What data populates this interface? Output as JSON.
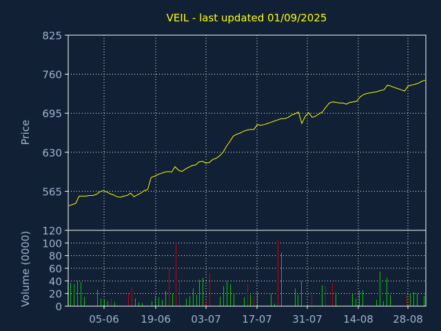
{
  "colors": {
    "background": "#112034",
    "frame": "#ffffff",
    "grid": "#ffffff",
    "title": "#ffff00",
    "axis_text": "#9db3d1",
    "price_line": "#ffff00",
    "volume_up": "#00cc00",
    "volume_down": "#cc0000"
  },
  "chart_data": [
    {
      "type": "line",
      "title": "VEIL - last updated 01/09/2025",
      "ylabel": "Price",
      "ylim": [
        500,
        825
      ],
      "yticks": [
        565,
        630,
        695,
        760,
        825
      ],
      "xtick_labels": [
        "05-06",
        "19-06",
        "03-07",
        "17-07",
        "31-07",
        "14-08",
        "28-08"
      ],
      "grid": true,
      "series": [
        {
          "values": [
            541,
            543,
            545,
            557,
            557,
            557,
            558,
            558,
            560,
            564,
            566,
            564,
            561,
            559,
            556,
            555,
            557,
            558,
            562,
            556,
            559,
            562,
            566,
            568,
            588,
            590,
            593,
            595,
            597,
            598,
            597,
            606,
            600,
            598,
            602,
            605,
            608,
            609,
            614,
            615,
            612,
            613,
            618,
            620,
            624,
            630,
            640,
            648,
            657,
            660,
            662,
            665,
            667,
            668,
            668,
            676,
            675,
            676,
            678,
            680,
            682,
            684,
            686,
            686,
            688,
            692,
            694,
            697,
            678,
            690,
            696,
            688,
            690,
            694,
            697,
            705,
            712,
            714,
            713,
            712,
            712,
            710,
            713,
            714,
            715,
            722,
            726,
            728,
            729,
            730,
            731,
            733,
            734,
            742,
            740,
            738,
            736,
            734,
            732,
            740,
            742,
            743,
            745,
            748,
            750
          ]
        }
      ]
    },
    {
      "type": "bar",
      "ylabel": "Volume (0000)",
      "ylim": [
        0,
        120
      ],
      "yticks": [
        0,
        20,
        40,
        60,
        80,
        100,
        120
      ],
      "xtick_labels": [
        "05-06",
        "19-06",
        "03-07",
        "17-07",
        "31-07",
        "14-08",
        "28-08"
      ],
      "series": [
        {
          "values": [
            37,
            35,
            40,
            38,
            15,
            0,
            0,
            0,
            26,
            12,
            10,
            8,
            12,
            7,
            0,
            0,
            0,
            20,
            30,
            12,
            6,
            5,
            0,
            0,
            8,
            16,
            14,
            10,
            24,
            60,
            20,
            100,
            40,
            0,
            12,
            16,
            28,
            18,
            42,
            45,
            8,
            52,
            0,
            0,
            15,
            32,
            40,
            35,
            20,
            0,
            0,
            14,
            35,
            18,
            15,
            22,
            0,
            0,
            0,
            20,
            4,
            105,
            85,
            0,
            0,
            0,
            28,
            18,
            40,
            0,
            0,
            18,
            0,
            0,
            33,
            32,
            0,
            36,
            22,
            0,
            0,
            0,
            0,
            20,
            12,
            25,
            25,
            0,
            0,
            0,
            10,
            55,
            8,
            45,
            18,
            0,
            0,
            0,
            0,
            18,
            20,
            22,
            20,
            0,
            16
          ],
          "direction": [
            1,
            1,
            1,
            1,
            1,
            1,
            1,
            1,
            1,
            1,
            1,
            1,
            -1,
            1,
            1,
            1,
            1,
            -1,
            -1,
            1,
            1,
            1,
            1,
            1,
            1,
            1,
            1,
            1,
            1,
            -1,
            1,
            -1,
            -1,
            1,
            1,
            1,
            1,
            1,
            1,
            1,
            -1,
            -1,
            1,
            1,
            1,
            1,
            1,
            1,
            1,
            1,
            1,
            1,
            -1,
            1,
            -1,
            1,
            1,
            1,
            1,
            1,
            1,
            -1,
            1,
            1,
            1,
            1,
            1,
            1,
            1,
            1,
            1,
            -1,
            1,
            1,
            1,
            -1,
            1,
            -1,
            1,
            1,
            1,
            1,
            1,
            1,
            1,
            1,
            1,
            1,
            1,
            1,
            1,
            1,
            1,
            1,
            1,
            1,
            1,
            1,
            1,
            -1,
            1,
            1,
            1,
            1,
            1
          ]
        }
      ]
    }
  ]
}
